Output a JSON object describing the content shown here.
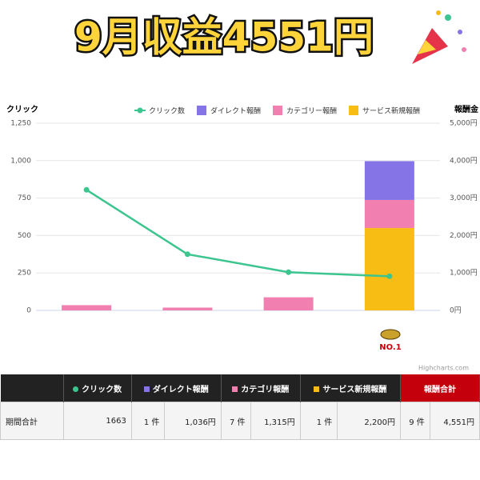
{
  "title": "9月収益4551円",
  "chart_data": {
    "type": "bar",
    "stacked": true,
    "categories": [
      null,
      null,
      null,
      null
    ],
    "y_title": "クリック",
    "y2_title": "報酬金",
    "ylim": [
      0,
      1250
    ],
    "yticks": [
      0,
      250,
      500,
      750,
      {
        "value": 1000,
        "label": "1,000"
      },
      {
        "value": 1250,
        "label": "1,250"
      }
    ],
    "y2lim": [
      0,
      5000
    ],
    "y2ticks": [
      {
        "value": 0,
        "label": "0円"
      },
      {
        "value": 1000,
        "label": "1,000円"
      },
      {
        "value": 2000,
        "label": "2,000円"
      },
      {
        "value": 3000,
        "label": "3,000円"
      },
      {
        "value": 4000,
        "label": "4,000円"
      },
      {
        "value": 5000,
        "label": "5,000円"
      }
    ],
    "grid": true,
    "legend_position": "top",
    "series": [
      {
        "name": "クリック数",
        "type": "line",
        "color": "#3cc58f",
        "values": [
          805,
          375,
          255,
          228
        ]
      },
      {
        "name": "ダイレクト報酬",
        "color": "#8574e6",
        "axis": "y2",
        "values": [
          null,
          null,
          null,
          1036
        ]
      },
      {
        "name": "カテゴリー報酬",
        "color": "#f17fb0",
        "axis": "y2",
        "values": [
          140,
          75,
          350,
          750
        ]
      },
      {
        "name": "サービス新規報酬",
        "color": "#f8bd14",
        "axis": "y2",
        "values": [
          null,
          null,
          null,
          2200
        ]
      }
    ],
    "badge": "NO.1",
    "credits": "Highcharts.com"
  },
  "table": {
    "header": [
      "クリック数",
      "ダイレクト報酬",
      "カテゴリ報酬",
      "サービス新規報酬",
      "報酬合計"
    ],
    "rows": [
      [
        "期間合計",
        "1663",
        "1 件",
        "1,036円",
        "7 件",
        "1,315円",
        "1 件",
        "2,200円",
        "9 件",
        "4,551円"
      ]
    ]
  }
}
